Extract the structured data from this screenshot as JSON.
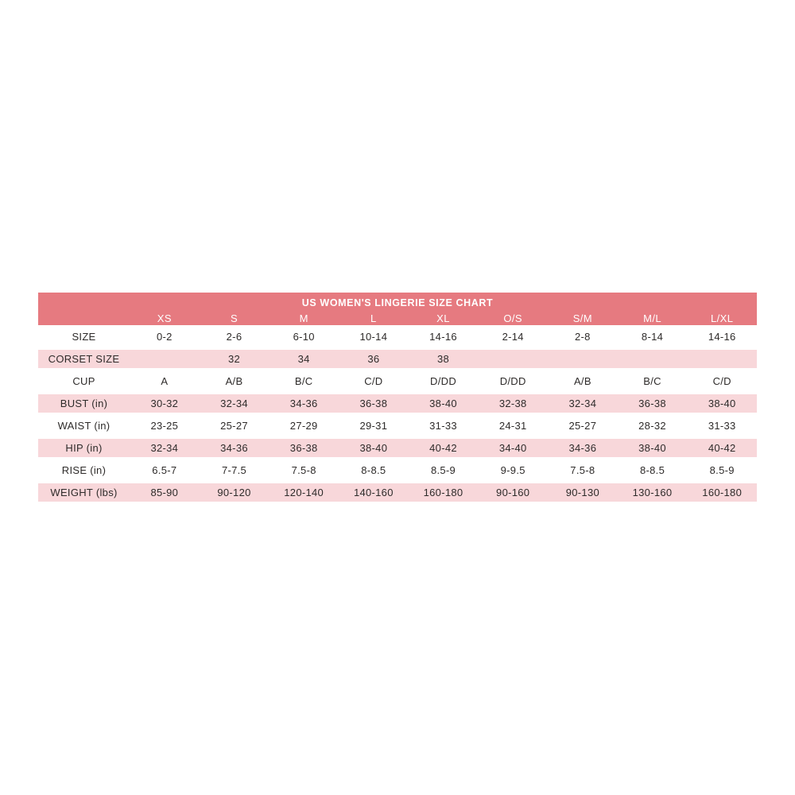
{
  "chart_data": {
    "type": "table",
    "title": "US WOMEN'S LINGERIE SIZE CHART",
    "columns": [
      "XS",
      "S",
      "M",
      "L",
      "XL",
      "O/S",
      "S/M",
      "M/L",
      "L/XL"
    ],
    "rows": [
      {
        "label": "SIZE",
        "values": [
          "0-2",
          "2-6",
          "6-10",
          "10-14",
          "14-16",
          "2-14",
          "2-8",
          "8-14",
          "14-16"
        ]
      },
      {
        "label": "CORSET SIZE",
        "values": [
          "",
          "32",
          "34",
          "36",
          "38",
          "",
          "",
          "",
          ""
        ]
      },
      {
        "label": "CUP",
        "values": [
          "A",
          "A/B",
          "B/C",
          "C/D",
          "D/DD",
          "D/DD",
          "A/B",
          "B/C",
          "C/D"
        ]
      },
      {
        "label": "BUST (in)",
        "values": [
          "30-32",
          "32-34",
          "34-36",
          "36-38",
          "38-40",
          "32-38",
          "32-34",
          "36-38",
          "38-40"
        ]
      },
      {
        "label": "WAIST (in)",
        "values": [
          "23-25",
          "25-27",
          "27-29",
          "29-31",
          "31-33",
          "24-31",
          "25-27",
          "28-32",
          "31-33"
        ]
      },
      {
        "label": "HIP (in)",
        "values": [
          "32-34",
          "34-36",
          "36-38",
          "38-40",
          "40-42",
          "34-40",
          "34-36",
          "38-40",
          "40-42"
        ]
      },
      {
        "label": "RISE (in)",
        "values": [
          "6.5-7",
          "7-7.5",
          "7.5-8",
          "8-8.5",
          "8.5-9",
          "9-9.5",
          "7.5-8",
          "8-8.5",
          "8.5-9"
        ]
      },
      {
        "label": "WEIGHT (lbs)",
        "values": [
          "85-90",
          "90-120",
          "120-140",
          "140-160",
          "160-180",
          "90-160",
          "90-130",
          "130-160",
          "160-180"
        ]
      }
    ],
    "layout": {
      "legend": "none",
      "grid": "striped-rows",
      "header_rows": 2
    }
  },
  "colors": {
    "header_bg": "#e67a80",
    "header_text": "#ffffff",
    "striped_row_bg": "#f8d7da",
    "row_separator": "#ffffff",
    "body_text": "#2e2b2a",
    "page_bg": "#ffffff"
  }
}
